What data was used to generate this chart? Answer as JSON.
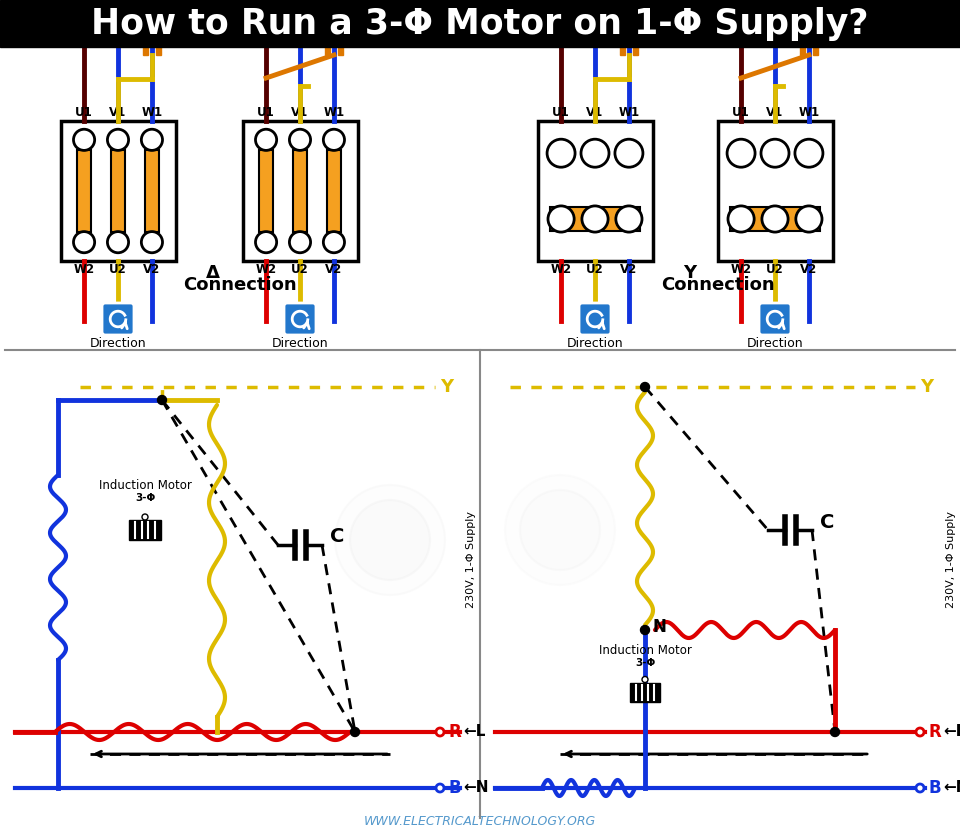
{
  "title": "How to Run a 3-Φ Motor on 1-Φ Supply?",
  "title_bg": "#000000",
  "title_color": "#ffffff",
  "bg_color": "#ffffff",
  "footer": "WWW.ELECTRICALTECHNOLOGY.ORG",
  "footer_color": "#5599cc",
  "colors": {
    "red": "#dd0000",
    "blue": "#1133dd",
    "yellow": "#ddbb00",
    "orange": "#dd7700",
    "dark_red": "#550000",
    "coil_fill": "#f5a020",
    "cyan_btn": "#2277cc",
    "black": "#000000",
    "white": "#ffffff",
    "lgray": "#cccccc"
  },
  "side_text": "230V, 1-Φ Supply"
}
